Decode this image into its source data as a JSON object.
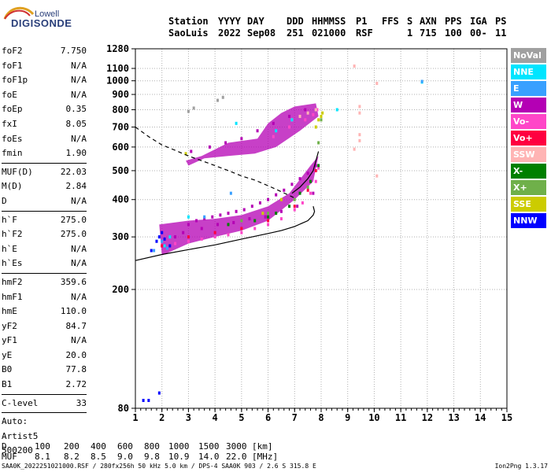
{
  "logo": {
    "line1": "Lowell",
    "line2": "DIGISONDE"
  },
  "header": {
    "row1": [
      "Station",
      "YYYY",
      "DAY",
      "DDD",
      "HHMMSS",
      "P1",
      "FFS",
      "S",
      "AXN",
      "PPS",
      "IGA",
      "PS"
    ],
    "row2": [
      "SaoLuis",
      "2022",
      "Sep08",
      "251",
      "021000",
      "RSF",
      "1",
      "715",
      "100",
      "00-",
      "11"
    ]
  },
  "params": [
    {
      "k": "foF2",
      "v": "7.750"
    },
    {
      "k": "foF1",
      "v": "N/A"
    },
    {
      "k": "foF1p",
      "v": "N/A"
    },
    {
      "k": "foE",
      "v": "N/A"
    },
    {
      "k": "foEp",
      "v": "0.35"
    },
    {
      "k": "fxI",
      "v": "8.05"
    },
    {
      "k": "foEs",
      "v": "N/A"
    },
    {
      "k": "fmin",
      "v": "1.90"
    },
    {
      "sep": true
    },
    {
      "k": "MUF(D)",
      "v": "22.03"
    },
    {
      "k": "M(D)",
      "v": "2.84"
    },
    {
      "k": "D",
      "v": "N/A"
    },
    {
      "sep": true
    },
    {
      "k": "h`F",
      "v": "275.0"
    },
    {
      "k": "h`F2",
      "v": "275.0"
    },
    {
      "k": "h`E",
      "v": "N/A"
    },
    {
      "k": "h`Es",
      "v": "N/A"
    },
    {
      "sep": true
    },
    {
      "k": "hmF2",
      "v": "359.6"
    },
    {
      "k": "hmF1",
      "v": "N/A"
    },
    {
      "k": "hmE",
      "v": "110.0"
    },
    {
      "k": "yF2",
      "v": "84.7"
    },
    {
      "k": "yF1",
      "v": "N/A"
    },
    {
      "k": "yE",
      "v": "20.0"
    },
    {
      "k": "B0",
      "v": "77.8"
    },
    {
      "k": "B1",
      "v": "2.72"
    },
    {
      "sep": true
    },
    {
      "k": "C-level",
      "v": "33"
    },
    {
      "sep": true
    },
    {
      "k": "Auto:",
      "v": ""
    },
    {
      "k": "Artist5",
      "v": ""
    },
    {
      "k": "500200",
      "v": ""
    }
  ],
  "legend": [
    {
      "label": "NoVal",
      "color": "#a0a0a0"
    },
    {
      "label": "NNE",
      "color": "#00e5ff"
    },
    {
      "label": "E",
      "color": "#39a0ff"
    },
    {
      "label": "W",
      "color": "#b400b4"
    },
    {
      "label": "Vo-",
      "color": "#ff46c8"
    },
    {
      "label": "Vo+",
      "color": "#ff0040"
    },
    {
      "label": "SSW",
      "color": "#ffb4b4"
    },
    {
      "label": "X-",
      "color": "#008000"
    },
    {
      "label": "X+",
      "color": "#6fb04a"
    },
    {
      "label": "SSE",
      "color": "#cccc00"
    },
    {
      "label": "NNW",
      "color": "#0000ff"
    }
  ],
  "bottom": {
    "row1": [
      "D",
      "100",
      "200",
      "400",
      "600",
      "800",
      "1000",
      "1500",
      "3000",
      "[km]"
    ],
    "row2": [
      "MUF",
      "8.1",
      "8.2",
      "8.5",
      "9.0",
      "9.8",
      "10.9",
      "14.0",
      "22.0",
      "[MHz]"
    ]
  },
  "footer": {
    "text": "SAA0K_2022251021000.RSF / 280fx256h 50 kHz 5.0 km / DPS-4 SAA0K 903 / 2.6 S 315.8 E",
    "version": "Ion2Png 1.3.17"
  },
  "chart_data": {
    "type": "scatter",
    "xlabel": "",
    "ylabel": "",
    "xlim": [
      1,
      15
    ],
    "ylim": [
      80,
      1280
    ],
    "y_scale": "log",
    "x_ticks": [
      1,
      2,
      3,
      4,
      5,
      6,
      7,
      8,
      9,
      10,
      11,
      12,
      13,
      14,
      15
    ],
    "y_ticks": [
      80,
      200,
      300,
      400,
      500,
      600,
      700,
      800,
      900,
      1000,
      1100,
      1280
    ],
    "grid": true,
    "regions": [
      {
        "name": "W",
        "color": "#b400b4",
        "poly": [
          [
            1.9,
            330
          ],
          [
            3,
            340
          ],
          [
            4,
            345
          ],
          [
            5,
            355
          ],
          [
            6,
            380
          ],
          [
            6.8,
            420
          ],
          [
            7.6,
            520
          ],
          [
            7.9,
            560
          ],
          [
            7.7,
            460
          ],
          [
            7,
            400
          ],
          [
            6,
            340
          ],
          [
            5,
            315
          ],
          [
            4,
            300
          ],
          [
            3,
            285
          ],
          [
            2,
            260
          ]
        ]
      },
      {
        "name": "W",
        "color": "#b400b4",
        "poly": [
          [
            2.9,
            540
          ],
          [
            3.5,
            560
          ],
          [
            4.5,
            620
          ],
          [
            5.6,
            640
          ],
          [
            6,
            720
          ],
          [
            6.5,
            780
          ],
          [
            7,
            820
          ],
          [
            7.8,
            840
          ],
          [
            7.9,
            760
          ],
          [
            7.2,
            680
          ],
          [
            6.3,
            600
          ],
          [
            5.5,
            570
          ],
          [
            4.5,
            560
          ],
          [
            3.6,
            550
          ],
          [
            3,
            520
          ]
        ]
      }
    ],
    "series": [
      {
        "name": "W",
        "color": "#b400b4",
        "x": [
          3.0,
          3.3,
          3.6,
          3.9,
          4.2,
          4.5,
          4.8,
          5.1,
          5.4,
          5.7,
          6.0,
          6.3,
          6.6,
          6.9,
          7.2,
          7.5,
          7.8,
          2.5,
          2.8,
          3.5,
          4.1,
          4.7,
          5.3,
          5.9,
          6.5,
          7.1,
          7.7,
          3.1,
          3.8,
          4.4,
          5.0,
          5.6,
          6.2,
          6.8,
          7.4
        ],
        "y": [
          330,
          340,
          345,
          350,
          355,
          360,
          365,
          370,
          380,
          390,
          400,
          415,
          430,
          450,
          470,
          490,
          520,
          300,
          310,
          320,
          330,
          335,
          345,
          350,
          365,
          380,
          420,
          580,
          600,
          620,
          640,
          680,
          720,
          760,
          800
        ]
      },
      {
        "name": "Vo-",
        "color": "#ff46c8",
        "x": [
          2.0,
          2.5,
          3.0,
          3.5,
          4.0,
          4.5,
          5.0,
          5.5,
          6.0,
          6.5,
          7.0,
          7.3,
          7.6,
          7.8,
          7.9,
          6.2,
          6.8,
          7.4,
          7.7,
          7.85
        ],
        "y": [
          280,
          285,
          290,
          295,
          300,
          305,
          310,
          320,
          330,
          345,
          370,
          390,
          420,
          460,
          510,
          650,
          700,
          740,
          770,
          800
        ]
      },
      {
        "name": "Vo+",
        "color": "#ff0040",
        "x": [
          2.0,
          3.0,
          4.0,
          5.0,
          6.0,
          7.0,
          7.5,
          7.8
        ],
        "y": [
          280,
          300,
          310,
          320,
          340,
          380,
          430,
          500
        ]
      },
      {
        "name": "X-",
        "color": "#008000",
        "x": [
          4.5,
          5.5,
          6.0,
          6.3,
          6.8,
          7.2,
          7.6,
          7.9
        ],
        "y": [
          330,
          340,
          350,
          360,
          380,
          420,
          460,
          520
        ]
      },
      {
        "name": "X+",
        "color": "#6fb04a",
        "x": [
          5.0,
          6.0,
          7.0,
          7.5,
          7.9,
          8.0
        ],
        "y": [
          340,
          360,
          400,
          440,
          620,
          740
        ]
      },
      {
        "name": "SSE",
        "color": "#cccc00",
        "x": [
          2.9,
          5.8,
          6.5,
          7.8,
          7.9,
          8.0,
          8.05
        ],
        "y": [
          570,
          360,
          400,
          700,
          740,
          760,
          780
        ]
      },
      {
        "name": "SSW",
        "color": "#ffb4b4",
        "x": [
          6.9,
          7.2,
          7.5,
          7.8,
          9.45,
          9.45,
          9.45,
          9.45,
          9.25,
          9.25,
          10.1,
          10.1
        ],
        "y": [
          740,
          760,
          780,
          800,
          630,
          660,
          780,
          820,
          590,
          1120,
          480,
          980
        ]
      },
      {
        "name": "NNE",
        "color": "#00e5ff",
        "x": [
          2.1,
          2.3,
          3.0,
          4.8,
          6.3,
          6.9,
          8.6,
          11.8
        ],
        "y": [
          280,
          300,
          350,
          720,
          680,
          740,
          800,
          990
        ]
      },
      {
        "name": "E",
        "color": "#39a0ff",
        "x": [
          1.7,
          2.0,
          2.2,
          3.6,
          4.6,
          11.8
        ],
        "y": [
          270,
          290,
          275,
          350,
          420,
          995
        ]
      },
      {
        "name": "NNW",
        "color": "#0000ff",
        "x": [
          1.6,
          1.8,
          1.9,
          2.0,
          2.1,
          2.3,
          1.3,
          1.5,
          1.9
        ],
        "y": [
          270,
          290,
          300,
          310,
          295,
          280,
          85,
          85,
          90
        ]
      },
      {
        "name": "NoVal",
        "color": "#a0a0a0",
        "x": [
          3.0,
          3.2,
          4.1,
          4.3
        ],
        "y": [
          790,
          810,
          860,
          880
        ]
      }
    ],
    "curves": [
      {
        "name": "trace",
        "color": "#000000",
        "style": "solid",
        "x": [
          1.0,
          2.0,
          3.0,
          4.0,
          5.0,
          6.0,
          6.5,
          7.0,
          7.5,
          7.7,
          7.75,
          7.7
        ],
        "y": [
          250,
          262,
          272,
          282,
          295,
          308,
          315,
          325,
          340,
          355,
          365,
          380
        ]
      },
      {
        "name": "trace",
        "color": "#000000",
        "style": "solid",
        "x": [
          6.9,
          7.2,
          7.5,
          7.7,
          7.8,
          7.9
        ],
        "y": [
          420,
          440,
          470,
          500,
          540,
          580
        ]
      },
      {
        "name": "profile",
        "color": "#000000",
        "style": "dashed",
        "x": [
          1.0,
          1.5,
          2.0,
          2.5,
          3.0,
          3.5,
          4.0,
          4.5,
          5.0,
          5.5,
          6.0,
          6.5,
          7.0
        ],
        "y": [
          700,
          650,
          610,
          585,
          560,
          540,
          520,
          500,
          480,
          465,
          445,
          425,
          405
        ]
      }
    ]
  }
}
